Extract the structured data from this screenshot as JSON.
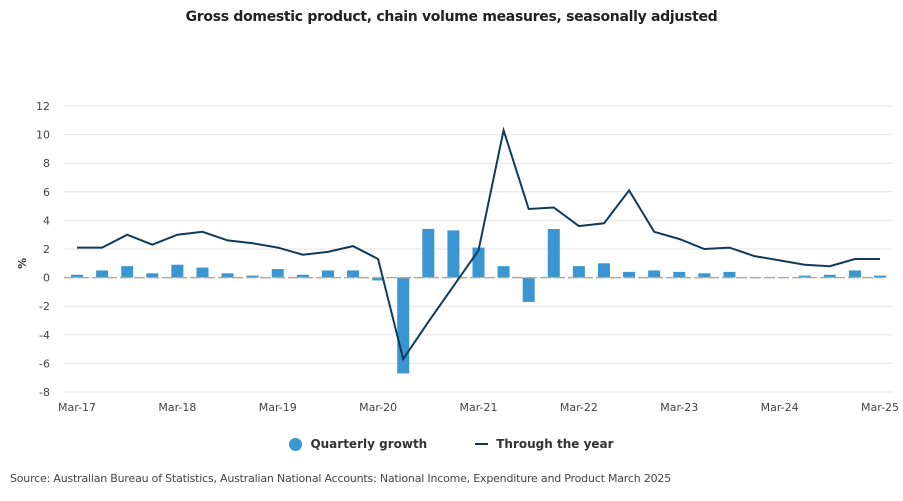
{
  "chart_data": {
    "type": "bar+line",
    "title": "Gross domestic product, chain volume measures, seasonally adjusted",
    "xlabel": "",
    "ylabel": "%",
    "ylim": [
      -8,
      12
    ],
    "yticks": [
      12,
      10,
      8,
      6,
      4,
      2,
      0,
      -2,
      -4,
      -6,
      -8
    ],
    "ytick_labels": [
      "12",
      "10",
      "8",
      "6",
      "4",
      "2",
      "0",
      "-2",
      "-4",
      "-6",
      "-8"
    ],
    "grid": true,
    "x": [
      "Mar-17",
      "Jun-17",
      "Sep-17",
      "Dec-17",
      "Mar-18",
      "Jun-18",
      "Sep-18",
      "Dec-18",
      "Mar-19",
      "Jun-19",
      "Sep-19",
      "Dec-19",
      "Mar-20",
      "Jun-20",
      "Sep-20",
      "Dec-20",
      "Mar-21",
      "Jun-21",
      "Sep-21",
      "Dec-21",
      "Mar-22",
      "Jun-22",
      "Sep-22",
      "Dec-22",
      "Mar-23",
      "Jun-23",
      "Sep-23",
      "Dec-23",
      "Mar-24",
      "Jun-24",
      "Sep-24",
      "Dec-24",
      "Mar-25"
    ],
    "xtick_labels": [
      "Mar-17",
      "Mar-18",
      "Mar-19",
      "Mar-20",
      "Mar-21",
      "Mar-22",
      "Mar-23",
      "Mar-24",
      "Mar-25"
    ],
    "series": [
      {
        "name": "Quarterly growth",
        "type": "bar",
        "color": "#3a96d0",
        "values": [
          0.2,
          0.5,
          0.8,
          0.3,
          0.9,
          0.7,
          0.3,
          0.1,
          0.6,
          0.2,
          0.5,
          0.5,
          -0.2,
          -6.7,
          3.4,
          3.3,
          2.1,
          0.8,
          -1.7,
          3.4,
          0.8,
          1.0,
          0.4,
          0.5,
          0.4,
          0.3,
          0.4,
          0.0,
          0.0,
          0.1,
          0.2,
          0.5,
          0.1
        ]
      },
      {
        "name": "Through the year",
        "type": "line",
        "color": "#0f3a5a",
        "values": [
          2.1,
          2.1,
          3.0,
          2.3,
          3.0,
          3.2,
          2.6,
          2.4,
          2.1,
          1.6,
          1.8,
          2.2,
          1.3,
          -5.7,
          -3.1,
          -0.6,
          1.9,
          10.3,
          4.8,
          4.9,
          3.6,
          3.8,
          6.1,
          3.2,
          2.7,
          2.0,
          2.1,
          1.5,
          1.2,
          0.9,
          0.8,
          1.3,
          1.3
        ]
      }
    ],
    "legend": {
      "placement": "bottom-center",
      "entries": [
        "Quarterly growth",
        "Through the year"
      ]
    },
    "source": "Source: Australian Bureau of Statistics, Australian National Accounts: National Income, Expenditure and Product March 2025"
  },
  "colors": {
    "bar": "#3a96d0",
    "line": "#0f3a5a",
    "grid": "#e6e6e6",
    "zero": "#b8a89a"
  }
}
